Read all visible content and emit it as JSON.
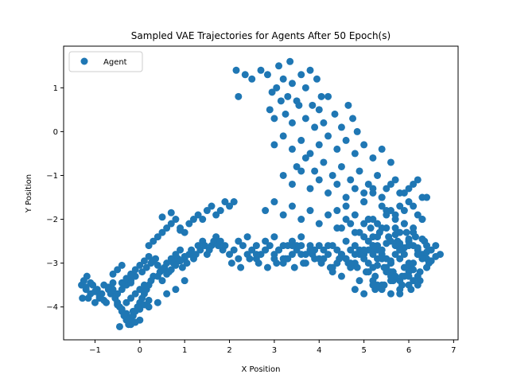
{
  "chart_data": {
    "type": "scatter",
    "title": "Sampled VAE Trajectories for Agents After 50 Epoch(s)",
    "xlabel": "X Position",
    "ylabel": "Y Position",
    "xlim": [
      -1.7,
      7.1
    ],
    "ylim": [
      -4.75,
      1.95
    ],
    "xticks": [
      -1,
      0,
      1,
      2,
      3,
      4,
      5,
      6,
      7
    ],
    "yticks": [
      -4,
      -3,
      -2,
      -1,
      0,
      1
    ],
    "grid": false,
    "legend": {
      "placement": "upper-left",
      "entries": [
        "Agent"
      ]
    },
    "series": [
      {
        "name": "Agent",
        "color": "#1f77b4",
        "x": [
          -1.3,
          -1.2,
          -1.1,
          -1.25,
          -1.15,
          -1.05,
          -0.95,
          -0.85,
          -1.0,
          -0.9,
          -0.8,
          -0.7,
          -1.28,
          -1.18,
          -0.75,
          -0.65,
          -0.6,
          -0.55,
          -0.5,
          -0.45,
          -0.4,
          -0.35,
          -0.3,
          -0.25,
          -0.2,
          -0.15,
          -0.1,
          -0.05,
          0.0,
          0.05,
          0.1,
          0.15,
          0.2,
          0.25,
          0.3,
          -0.3,
          -0.2,
          -0.1,
          0.0,
          0.1,
          -0.5,
          -0.4,
          -0.3,
          -0.2,
          -0.1,
          0.05,
          0.15,
          0.25,
          0.35,
          0.4,
          0.45,
          0.5,
          0.55,
          0.6,
          0.65,
          0.7,
          0.75,
          0.8,
          0.85,
          0.9,
          0.95,
          1.0,
          1.05,
          1.1,
          1.15,
          1.2,
          1.25,
          1.3,
          1.35,
          1.4,
          1.45,
          1.5,
          1.55,
          1.6,
          1.65,
          1.7,
          1.75,
          1.8,
          1.85,
          1.9,
          0.2,
          0.3,
          0.4,
          0.5,
          0.6,
          0.7,
          0.8,
          0.9,
          1.0,
          1.1,
          1.2,
          1.3,
          1.4,
          1.5,
          1.6,
          1.7,
          1.8,
          1.9,
          2.0,
          2.1,
          -0.2,
          0.0,
          0.2,
          0.4,
          0.6,
          0.8,
          1.0,
          0.5,
          0.7,
          0.9,
          2.0,
          2.1,
          2.2,
          2.3,
          2.4,
          2.5,
          2.6,
          2.7,
          2.8,
          2.9,
          3.0,
          3.1,
          3.2,
          3.3,
          3.4,
          3.5,
          3.6,
          3.7,
          3.8,
          3.9,
          2.05,
          2.25,
          2.45,
          2.65,
          2.85,
          3.05,
          3.25,
          3.45,
          3.65,
          3.85,
          2.2,
          2.4,
          2.6,
          2.8,
          3.0,
          3.2,
          3.4,
          3.6,
          3.8,
          4.0,
          4.1,
          4.2,
          4.3,
          4.4,
          4.5,
          4.6,
          4.7,
          4.8,
          4.9,
          5.0,
          5.1,
          5.2,
          5.3,
          5.4,
          4.05,
          4.25,
          4.45,
          4.65,
          4.85,
          5.0,
          5.1,
          5.2,
          5.3,
          5.4,
          5.5,
          5.6,
          5.7,
          5.8,
          5.9,
          6.0,
          6.1,
          6.2,
          6.3,
          6.4,
          6.5,
          6.6,
          6.7,
          5.05,
          5.25,
          5.45,
          5.65,
          5.85,
          6.05,
          6.25,
          6.45,
          5.15,
          5.35,
          5.55,
          5.75,
          5.95,
          6.15,
          6.35,
          5.2,
          5.4,
          5.6,
          5.8,
          6.0,
          6.2,
          6.4,
          5.1,
          5.3,
          5.5,
          5.7,
          5.9,
          6.1,
          6.3,
          5.25,
          5.45,
          5.65,
          5.85,
          6.05,
          6.25,
          5.5,
          5.7,
          5.9,
          6.1,
          5.6,
          5.8,
          6.0,
          5.0,
          5.2,
          5.4,
          5.6,
          5.8,
          6.0,
          6.2,
          6.4,
          6.6,
          5.3,
          5.5,
          5.7,
          5.9,
          6.1,
          6.3,
          6.5,
          4.5,
          4.7,
          4.9,
          5.1,
          5.3,
          5.5,
          5.7,
          5.9,
          6.1,
          6.3,
          4.6,
          4.8,
          5.0,
          5.2,
          5.4,
          5.6,
          5.8,
          6.0,
          6.2,
          6.4,
          4.4,
          4.6,
          4.8,
          5.0,
          5.2,
          5.4,
          5.6,
          5.8,
          6.0,
          6.2,
          4.3,
          4.5,
          4.7,
          4.9,
          5.1,
          5.3,
          5.5,
          5.7,
          5.9,
          6.1,
          5.0,
          5.2,
          5.4,
          5.6,
          5.8,
          6.0,
          6.2,
          6.4,
          4.8,
          5.0,
          5.2,
          5.4,
          5.6,
          5.8,
          6.0,
          6.2,
          2.15,
          2.2,
          2.35,
          2.5,
          2.7,
          2.85,
          2.95,
          3.05,
          3.1,
          3.2,
          3.3,
          3.35,
          3.4,
          3.5,
          3.6,
          3.7,
          3.8,
          3.85,
          3.95,
          4.05,
          2.9,
          3.0,
          3.15,
          3.25,
          3.4,
          3.55,
          3.7,
          3.9,
          4.0,
          4.1,
          4.2,
          4.35,
          4.5,
          4.65,
          4.75,
          4.85,
          3.0,
          3.2,
          3.4,
          3.6,
          3.8,
          4.0,
          4.2,
          4.4,
          4.6,
          4.8,
          5.0,
          5.2,
          5.4,
          5.6,
          3.5,
          3.7,
          3.9,
          4.1,
          4.3,
          4.5,
          4.7,
          4.9,
          5.1,
          5.3,
          5.5,
          5.7,
          5.9,
          6.1,
          6.3,
          3.2,
          3.4,
          3.6,
          3.8,
          4.0,
          4.2,
          4.4,
          4.6,
          4.8,
          5.0,
          5.2,
          5.4,
          2.8,
          3.0,
          3.2,
          3.4,
          3.6,
          3.8,
          4.0,
          4.2,
          4.4,
          4.6,
          4.8,
          5.0,
          5.2,
          5.4,
          5.6,
          5.8,
          6.0,
          3.1,
          3.3,
          3.5,
          3.7,
          3.9,
          4.1,
          4.3,
          4.5,
          4.7,
          4.9,
          5.1,
          5.3,
          5.5,
          5.7,
          5.9,
          6.1,
          6.3,
          2.6,
          2.8,
          3.0,
          3.2,
          3.4,
          3.6,
          3.8,
          4.0,
          4.2,
          4.4,
          4.6,
          4.8,
          5.0,
          5.2,
          5.4,
          5.6,
          5.8,
          6.0,
          6.2,
          6.4,
          -1.2,
          -1.1,
          -1.0,
          -0.9,
          -0.8,
          -0.7,
          -0.6,
          -0.5,
          -0.4,
          -0.3,
          -0.2,
          -0.1,
          0.0,
          0.1,
          0.2,
          -0.45,
          -0.35,
          -0.25,
          -0.15,
          -0.05,
          -0.4,
          -0.3,
          -0.2,
          -0.1,
          0.0,
          0.1,
          0.2,
          0.3,
          0.4,
          0.5,
          0.6,
          0.7,
          0.8,
          0.9,
          1.0,
          -0.6,
          -0.5,
          -0.4,
          -0.3,
          -0.2
        ],
        "y": [
          -3.5,
          -3.6,
          -3.7,
          -3.4,
          -3.8,
          -3.5,
          -3.6,
          -3.7,
          -3.9,
          -3.8,
          -3.5,
          -3.6,
          -3.8,
          -3.3,
          -3.9,
          -3.7,
          -3.6,
          -3.8,
          -3.9,
          -4.0,
          -4.1,
          -4.2,
          -4.3,
          -4.4,
          -4.3,
          -4.2,
          -4.1,
          -4.0,
          -3.9,
          -3.8,
          -3.7,
          -3.6,
          -3.5,
          -3.4,
          -3.3,
          -3.9,
          -3.8,
          -3.7,
          -3.6,
          -3.5,
          -3.7,
          -3.6,
          -3.5,
          -3.4,
          -3.3,
          -3.2,
          -3.1,
          -3.0,
          -2.9,
          -3.3,
          -3.2,
          -3.4,
          -3.1,
          -3.0,
          -3.2,
          -2.9,
          -3.0,
          -2.8,
          -2.9,
          -2.7,
          -3.1,
          -2.9,
          -3.0,
          -2.8,
          -2.7,
          -2.9,
          -2.8,
          -2.6,
          -2.7,
          -2.5,
          -2.6,
          -2.8,
          -2.7,
          -2.6,
          -2.5,
          -2.4,
          -2.6,
          -2.5,
          -2.7,
          -2.6,
          -2.6,
          -2.5,
          -2.4,
          -2.3,
          -2.2,
          -2.1,
          -2.0,
          -2.2,
          -2.3,
          -2.1,
          -2.0,
          -1.9,
          -2.0,
          -1.8,
          -1.7,
          -1.9,
          -1.8,
          -1.6,
          -1.7,
          -1.6,
          -4.4,
          -4.3,
          -4.0,
          -3.9,
          -3.7,
          -3.6,
          -3.4,
          -1.95,
          -1.85,
          -2.25,
          -2.8,
          -2.7,
          -2.9,
          -2.6,
          -2.8,
          -2.7,
          -2.9,
          -2.8,
          -2.7,
          -2.6,
          -2.8,
          -2.7,
          -2.9,
          -2.6,
          -2.8,
          -2.7,
          -2.6,
          -2.8,
          -2.7,
          -2.9,
          -3.0,
          -3.1,
          -2.9,
          -3.0,
          -3.1,
          -3.0,
          -2.9,
          -3.1,
          -3.0,
          -2.8,
          -2.5,
          -2.4,
          -2.6,
          -2.5,
          -2.4,
          -2.6,
          -2.5,
          -2.4,
          -2.6,
          -2.6,
          -2.7,
          -2.8,
          -2.6,
          -2.7,
          -2.8,
          -2.9,
          -2.7,
          -2.6,
          -2.8,
          -2.9,
          -2.7,
          -2.8,
          -2.6,
          -2.9,
          -3.0,
          -3.1,
          -2.9,
          -3.0,
          -3.1,
          -2.4,
          -2.5,
          -2.6,
          -2.7,
          -2.8,
          -2.9,
          -3.0,
          -2.6,
          -2.7,
          -2.8,
          -2.5,
          -2.6,
          -2.7,
          -2.8,
          -2.9,
          -2.7,
          -2.6,
          -2.8,
          -3.2,
          -3.3,
          -3.1,
          -3.2,
          -3.3,
          -3.1,
          -3.2,
          -3.0,
          -2.2,
          -2.3,
          -2.4,
          -2.5,
          -2.3,
          -2.4,
          -2.5,
          -3.4,
          -3.5,
          -3.3,
          -3.4,
          -3.2,
          -3.3,
          -3.1,
          -2.0,
          -2.1,
          -2.2,
          -2.0,
          -2.1,
          -2.2,
          -2.0,
          -3.6,
          -3.5,
          -3.4,
          -3.5,
          -3.6,
          -3.4,
          -1.8,
          -1.9,
          -1.8,
          -1.7,
          -3.7,
          -3.6,
          -3.5,
          -2.75,
          -2.65,
          -2.85,
          -2.95,
          -2.55,
          -2.45,
          -2.65,
          -2.75,
          -2.85,
          -3.05,
          -2.55,
          -2.35,
          -2.65,
          -3.15,
          -2.45,
          -2.95,
          -2.2,
          -2.1,
          -2.3,
          -2.0,
          -2.4,
          -1.9,
          -2.2,
          -2.1,
          -2.3,
          -2.0,
          -2.9,
          -3.0,
          -2.8,
          -3.1,
          -2.7,
          -3.2,
          -2.9,
          -3.0,
          -2.8,
          -3.1,
          -1.8,
          -1.7,
          -1.9,
          -1.6,
          -2.0,
          -1.5,
          -1.8,
          -1.7,
          -1.6,
          -1.9,
          -3.2,
          -3.3,
          -3.1,
          -3.4,
          -3.0,
          -3.5,
          -3.2,
          -3.3,
          -3.1,
          -3.4,
          -1.4,
          -1.3,
          -1.5,
          -1.2,
          -1.4,
          -1.3,
          -1.1,
          -1.5,
          -3.6,
          -3.7,
          -3.5,
          -3.6,
          -3.4,
          -3.7,
          -3.3,
          -3.5,
          1.4,
          0.8,
          1.3,
          1.2,
          1.4,
          1.3,
          0.9,
          1.0,
          1.5,
          1.2,
          0.8,
          1.6,
          1.1,
          0.7,
          1.3,
          1.0,
          1.4,
          0.6,
          1.2,
          0.8,
          0.5,
          0.3,
          0.7,
          0.4,
          0.2,
          0.6,
          0.3,
          0.1,
          0.5,
          0.2,
          0.8,
          0.4,
          0.1,
          0.6,
          0.3,
          0.0,
          -0.3,
          -0.1,
          -0.4,
          -0.2,
          -0.5,
          -0.3,
          -0.1,
          -0.4,
          -0.2,
          -0.5,
          -0.3,
          -0.6,
          -0.4,
          -0.7,
          -0.8,
          -0.6,
          -0.9,
          -0.7,
          -1.0,
          -0.8,
          -1.1,
          -0.9,
          -1.2,
          -1.0,
          -1.3,
          -1.1,
          -1.4,
          -1.2,
          -1.5,
          -1.0,
          -1.2,
          -0.9,
          -1.3,
          -1.1,
          -1.4,
          -1.2,
          -1.5,
          -1.3,
          -1.6,
          -1.4,
          -1.7,
          -1.8,
          -1.6,
          -1.9,
          -1.7,
          -2.0,
          -1.8,
          -2.1,
          -1.9,
          -2.2,
          -2.0,
          -2.3,
          -2.1,
          -2.4,
          -2.2,
          -2.5,
          -2.3,
          -2.6,
          -2.7,
          -2.9,
          -2.6,
          -3.0,
          -2.7,
          -2.9,
          -3.1,
          -2.8,
          -3.0,
          -2.7,
          -3.2,
          -2.9,
          -3.1,
          -2.8,
          -3.3,
          -3.0,
          -2.9,
          -2.8,
          -2.7,
          -2.9,
          -3.0,
          -2.6,
          -2.8,
          -2.7,
          -2.9,
          -2.6,
          -3.0,
          -2.5,
          -2.8,
          -2.7,
          -2.6,
          -2.9,
          -3.0,
          -2.7,
          -2.5,
          -2.8,
          -2.6,
          -3.55,
          -3.45,
          -3.65,
          -3.75,
          -3.85,
          -3.55,
          -3.45,
          -3.95,
          -4.05,
          -4.15,
          -4.25,
          -4.35,
          -4.05,
          -3.95,
          -3.85,
          -4.45,
          -4.2,
          -4.3,
          -4.1,
          -4.0,
          -3.45,
          -3.35,
          -3.25,
          -3.15,
          -3.05,
          -2.95,
          -2.85,
          -2.95,
          -3.05,
          -3.15,
          -3.25,
          -3.15,
          -3.05,
          -2.95,
          -2.85,
          -3.25,
          -3.15,
          -3.05,
          -3.35,
          -3.45
        ]
      }
    ]
  }
}
